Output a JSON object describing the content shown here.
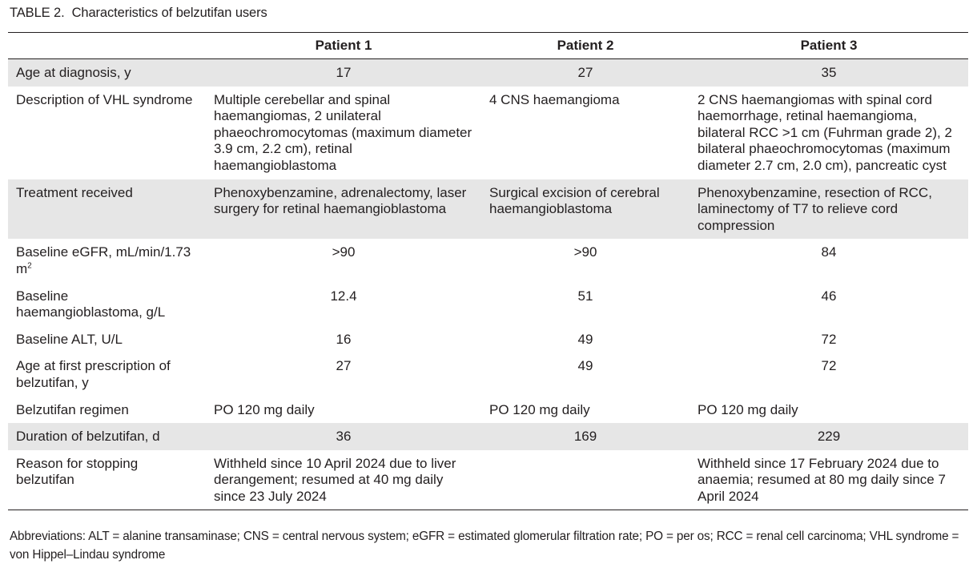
{
  "table": {
    "label": "TABLE 2.",
    "title": "Characteristics of belzutifan users",
    "headers": [
      "",
      "Patient 1",
      "Patient 2",
      "Patient 3"
    ],
    "rows": [
      {
        "label": "Age at diagnosis, y",
        "p1": "17",
        "p2": "27",
        "p3": "35",
        "shaded": true,
        "align": "center"
      },
      {
        "label": "Description of VHL syndrome",
        "p1": "Multiple cerebellar and spinal haemangiomas, 2 unilateral phaeochromocytomas (maximum diameter 3.9 cm, 2.2 cm), retinal haemangioblastoma",
        "p2": "4 CNS haemangioma",
        "p3": "2 CNS haemangiomas with spinal cord haemorrhage, retinal haemangioma, bilateral RCC >1 cm (Fuhrman grade 2), 2 bilateral phaeochromocytomas (maximum diameter 2.7 cm, 2.0 cm), pancreatic cyst",
        "shaded": false,
        "align": "left"
      },
      {
        "label": "Treatment received",
        "p1": "Phenoxybenzamine, adrenalectomy, laser surgery for retinal haemangioblastoma",
        "p2": "Surgical excision of cerebral haemangioblastoma",
        "p3": "Phenoxybenzamine, resection of RCC, laminectomy of T7 to relieve cord compression",
        "shaded": true,
        "align": "left"
      },
      {
        "label": "Baseline eGFR, mL/min/1.73 m",
        "label_sup": "2",
        "p1": ">90",
        "p2": ">90",
        "p3": "84",
        "shaded": false,
        "align": "center"
      },
      {
        "label": "Baseline haemangioblastoma, g/L",
        "p1": "12.4",
        "p2": "51",
        "p3": "46",
        "shaded": false,
        "align": "center"
      },
      {
        "label": "Baseline ALT, U/L",
        "p1": "16",
        "p2": "49",
        "p3": "72",
        "shaded": false,
        "align": "center"
      },
      {
        "label": "Age at first prescription of belzutifan, y",
        "p1": "27",
        "p2": "49",
        "p3": "72",
        "shaded": false,
        "align": "center"
      },
      {
        "label": "Belzutifan regimen",
        "p1": "PO 120 mg daily",
        "p2": "PO 120 mg daily",
        "p3": "PO 120 mg daily",
        "shaded": false,
        "align": "left"
      },
      {
        "label": "Duration of belzutifan, d",
        "p1": "36",
        "p2": "169",
        "p3": "229",
        "shaded": true,
        "align": "center"
      },
      {
        "label": "Reason for stopping belzutifan",
        "p1": "Withheld since 10 April 2024 due to liver derangement; resumed at 40 mg daily since 23 July 2024",
        "p2": "",
        "p3": "Withheld since 17 February 2024 due to anaemia; resumed at 80 mg daily since 7 April 2024",
        "shaded": false,
        "align": "left"
      }
    ],
    "footnote": "Abbreviations: ALT = alanine transaminase; CNS = central nervous system; eGFR = estimated glomerular filtration rate; PO = per os; RCC = renal cell carcinoma; VHL syndrome = von Hippel–Lindau syndrome"
  }
}
